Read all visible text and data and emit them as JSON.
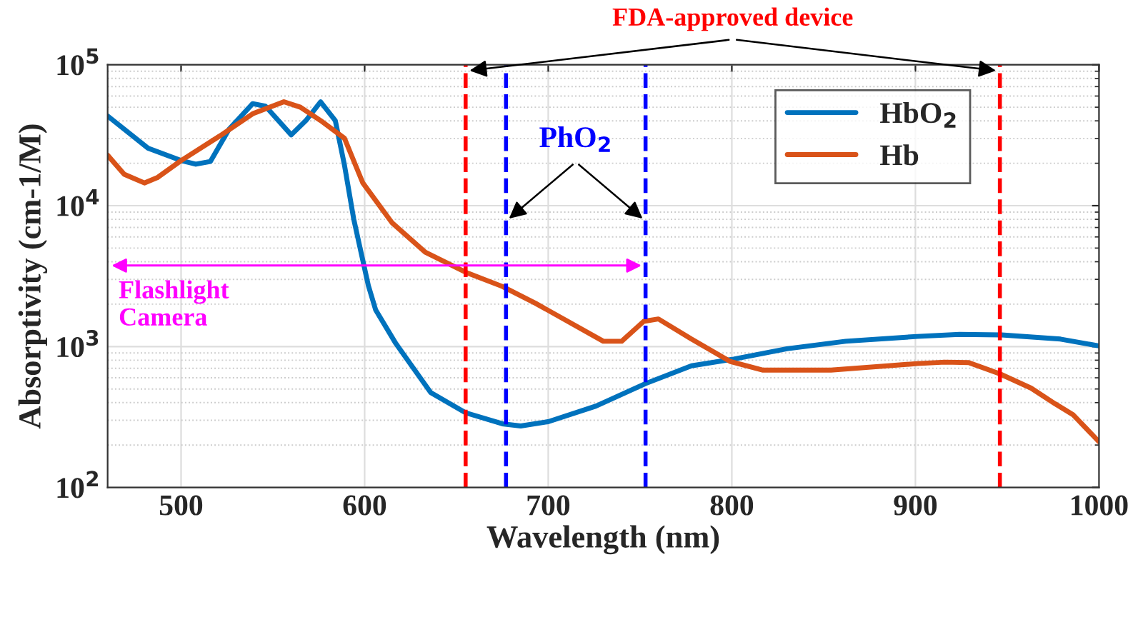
{
  "chart_data": {
    "type": "line",
    "xlabel": "Wavelength (nm)",
    "ylabel": "Absorptivity (cm-1/M)",
    "log": "y",
    "xlim": [
      460,
      1000
    ],
    "xticks": [
      500,
      600,
      700,
      800,
      900,
      1000
    ],
    "ylim": [
      100,
      100000
    ],
    "yticks": [
      {
        "value": 100,
        "label": "10$^{2}$"
      },
      {
        "value": 1000,
        "label": "10$^{3}$"
      },
      {
        "value": 10000,
        "label": "10$^{4}$"
      },
      {
        "value": 100000,
        "label": "10$^{5}$"
      }
    ],
    "grid": true,
    "legend": "top right",
    "line_style": "solid",
    "marker": "none",
    "series": [
      {
        "name": "HbO$_{2}$",
        "color": "#0072bd",
        "x": [
          460,
          482,
          500,
          508,
          516,
          526,
          539,
          546,
          560,
          568,
          576,
          584,
          589,
          594,
          602,
          606,
          617,
          636,
          655,
          675,
          685,
          700,
          726,
          753,
          778,
          801,
          830,
          862,
          901,
          924,
          947,
          979,
          1000
        ],
        "values": [
          43300,
          25600,
          20900,
          19700,
          20600,
          34700,
          53000,
          50800,
          31800,
          40200,
          54600,
          40200,
          19400,
          8090,
          2710,
          1820,
          1050,
          471,
          339,
          283,
          273,
          293,
          378,
          546,
          730,
          815,
          964,
          1090,
          1180,
          1220,
          1210,
          1130,
          1010
        ]
      },
      {
        "name": "Hb",
        "color": "#d95319",
        "x": [
          460,
          469,
          480,
          487,
          500,
          521,
          539,
          556,
          565,
          576,
          589,
          599,
          615,
          633,
          655,
          675,
          693,
          730,
          740,
          752,
          760,
          778,
          799,
          817,
          854,
          901,
          916,
          929,
          946,
          963,
          976,
          986,
          1000
        ],
        "values": [
          22800,
          16700,
          14500,
          15800,
          20900,
          31200,
          44900,
          54600,
          50000,
          40200,
          30100,
          14500,
          7540,
          4680,
          3370,
          2670,
          2030,
          1090,
          1090,
          1510,
          1570,
          1130,
          785,
          680,
          680,
          757,
          775,
          770,
          640,
          507,
          393,
          327,
          211
        ]
      }
    ],
    "ref_lines": [
      {
        "axis": "x",
        "value": 655,
        "label": "FDA-approved device",
        "color": "#ff0000",
        "line_style": "dashed"
      },
      {
        "axis": "x",
        "value": 946,
        "label": null,
        "color": "#ff0000",
        "line_style": "dashed"
      },
      {
        "axis": "x",
        "value": 677,
        "label": "PhO$_{2}$",
        "color": "#0000ff",
        "line_style": "dashed"
      },
      {
        "axis": "x",
        "value": 753,
        "label": null,
        "color": "#0000ff",
        "line_style": "dashed"
      }
    ],
    "annotations": [
      "Flashlight\nCamera"
    ]
  }
}
